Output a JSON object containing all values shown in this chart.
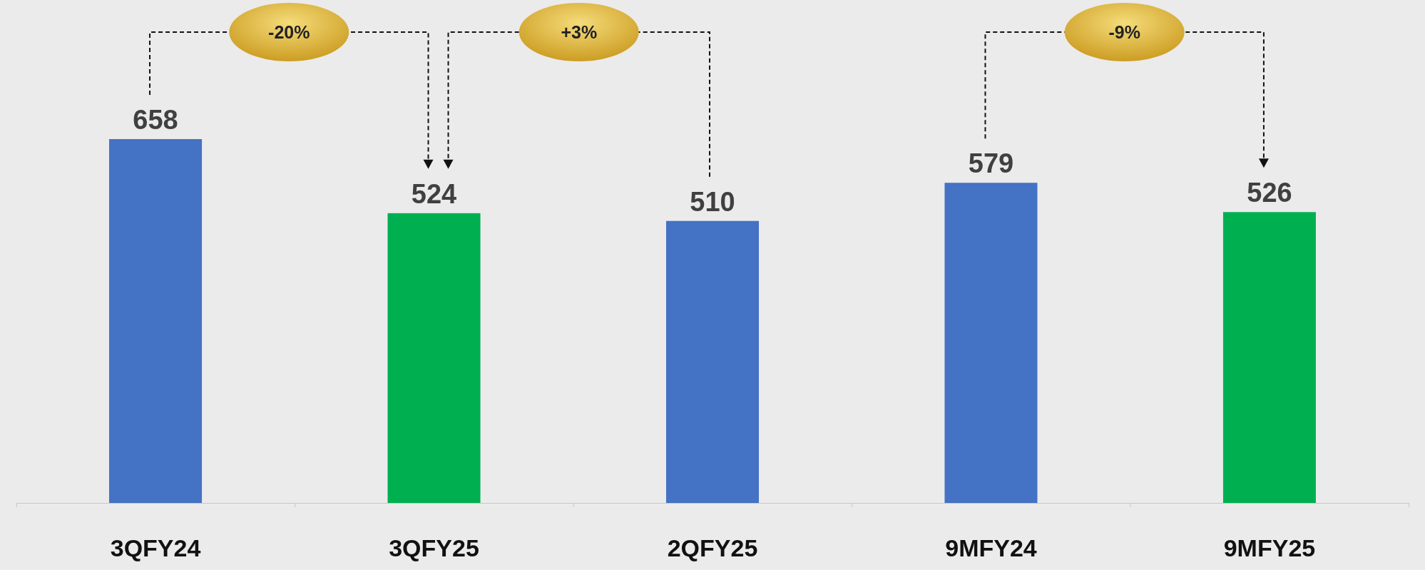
{
  "chart_data": {
    "type": "bar",
    "categories": [
      "3QFY24",
      "3QFY25",
      "2QFY25",
      "9MFY24",
      "9MFY25"
    ],
    "values": [
      658,
      524,
      510,
      579,
      526
    ],
    "colors": [
      "#4472c4",
      "#00b050",
      "#4472c4",
      "#4472c4",
      "#00b050"
    ],
    "data_labels": true,
    "annotations": [
      "-20%",
      "+3%",
      "-9%"
    ]
  }
}
